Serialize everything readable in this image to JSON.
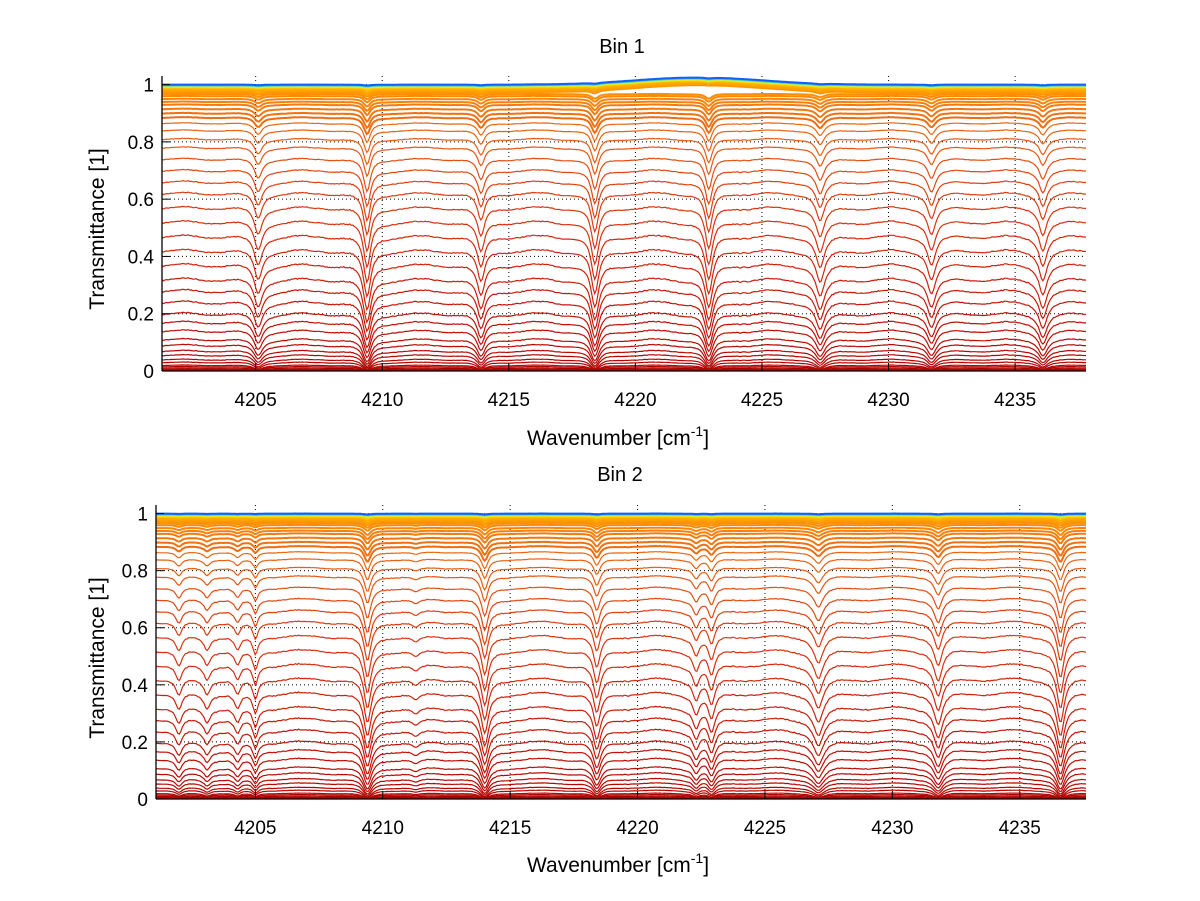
{
  "chart_data": [
    {
      "type": "line",
      "title": "Bin 1",
      "xlabel": "Wavenumber [cm",
      "xlabel_sup": "-1",
      "xlabel_end": "]",
      "ylabel": "Transmittance [1]",
      "xlim": [
        4201.3,
        4237.8
      ],
      "ylim": [
        0,
        1.03
      ],
      "grid": true,
      "xticks": [
        4205,
        4210,
        4215,
        4220,
        4225,
        4230,
        4235
      ],
      "xtick_labels": [
        "4205",
        "4210",
        "4215",
        "4220",
        "4225",
        "4230",
        "4235"
      ],
      "yticks": [
        0,
        0.2,
        0.4,
        0.6,
        0.8,
        1
      ],
      "ytick_labels": [
        "0",
        "0.2",
        "0.4",
        "0.6",
        "0.8",
        "1"
      ],
      "absorption_lines": [
        {
          "center": 4205.1,
          "depth": 0.9,
          "width": 0.18
        },
        {
          "center": 4209.4,
          "depth": 1.6,
          "width": 0.16
        },
        {
          "center": 4213.9,
          "depth": 1.0,
          "width": 0.17
        },
        {
          "center": 4218.4,
          "depth": 1.5,
          "width": 0.16
        },
        {
          "center": 4222.9,
          "depth": 1.5,
          "width": 0.16
        },
        {
          "center": 4227.3,
          "depth": 1.0,
          "width": 0.2
        },
        {
          "center": 4231.7,
          "depth": 0.9,
          "width": 0.18
        },
        {
          "center": 4236.1,
          "depth": 0.9,
          "width": 0.18
        }
      ],
      "series_continuum_levels": [
        0.003,
        0.006,
        0.01,
        0.015,
        0.02,
        0.03,
        0.04,
        0.055,
        0.07,
        0.09,
        0.11,
        0.14,
        0.17,
        0.2,
        0.24,
        0.28,
        0.32,
        0.37,
        0.42,
        0.47,
        0.52,
        0.57,
        0.62,
        0.66,
        0.7,
        0.74,
        0.78,
        0.81,
        0.84,
        0.865,
        0.885,
        0.9,
        0.915,
        0.93,
        0.94,
        0.95,
        0.96,
        0.967,
        0.973,
        0.978,
        0.983,
        0.987,
        0.99,
        0.993,
        0.996,
        0.998,
        1.0
      ],
      "colormap": [
        "#b00000",
        "#d42a10",
        "#e85a14",
        "#f27a10",
        "#ff9000",
        "#ffc000",
        "#e8f020",
        "#40e0c0",
        "#1060ff"
      ]
    },
    {
      "type": "line",
      "title": "Bin 2",
      "xlabel": "Wavenumber [cm",
      "xlabel_sup": "-1",
      "xlabel_end": "]",
      "ylabel": "Transmittance [1]",
      "xlim": [
        4201.1,
        4237.6
      ],
      "ylim": [
        0,
        1.03
      ],
      "grid": true,
      "xticks": [
        4205,
        4210,
        4215,
        4220,
        4225,
        4230,
        4235
      ],
      "xtick_labels": [
        "4205",
        "4210",
        "4215",
        "4220",
        "4225",
        "4230",
        "4235"
      ],
      "yticks": [
        0,
        0.2,
        0.4,
        0.6,
        0.8,
        1
      ],
      "ytick_labels": [
        "0",
        "0.2",
        "0.4",
        "0.6",
        "0.8",
        "1"
      ],
      "absorption_lines": [
        {
          "center": 4202.0,
          "depth": 0.5,
          "width": 0.15
        },
        {
          "center": 4203.1,
          "depth": 0.4,
          "width": 0.15
        },
        {
          "center": 4204.3,
          "depth": 0.45,
          "width": 0.15
        },
        {
          "center": 4205.0,
          "depth": 0.6,
          "width": 0.12
        },
        {
          "center": 4209.4,
          "depth": 1.5,
          "width": 0.16
        },
        {
          "center": 4211.3,
          "depth": 0.2,
          "width": 0.2
        },
        {
          "center": 4214.0,
          "depth": 1.4,
          "width": 0.16
        },
        {
          "center": 4218.4,
          "depth": 1.1,
          "width": 0.16
        },
        {
          "center": 4222.3,
          "depth": 0.6,
          "width": 0.15
        },
        {
          "center": 4222.9,
          "depth": 0.8,
          "width": 0.15
        },
        {
          "center": 4227.1,
          "depth": 0.9,
          "width": 0.22
        },
        {
          "center": 4231.8,
          "depth": 1.0,
          "width": 0.18
        },
        {
          "center": 4236.6,
          "depth": 1.5,
          "width": 0.16
        }
      ],
      "series_continuum_levels": [
        0.003,
        0.006,
        0.01,
        0.015,
        0.02,
        0.03,
        0.04,
        0.055,
        0.07,
        0.09,
        0.11,
        0.14,
        0.17,
        0.2,
        0.24,
        0.28,
        0.32,
        0.37,
        0.42,
        0.47,
        0.52,
        0.57,
        0.62,
        0.66,
        0.7,
        0.74,
        0.78,
        0.81,
        0.84,
        0.865,
        0.885,
        0.9,
        0.915,
        0.93,
        0.94,
        0.95,
        0.96,
        0.967,
        0.973,
        0.978,
        0.983,
        0.987,
        0.99,
        0.993,
        0.996,
        0.998,
        1.0
      ],
      "colormap": [
        "#b00000",
        "#d42a10",
        "#e85a14",
        "#f27a10",
        "#ff9000",
        "#ffc000",
        "#e8f020",
        "#40e0c0",
        "#1060ff"
      ]
    }
  ]
}
